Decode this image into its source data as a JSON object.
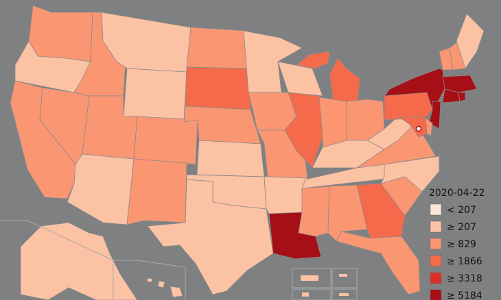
{
  "legend": {
    "title": "2020-04-22",
    "items": [
      {
        "label": "< 207",
        "color": "#fee5d9"
      },
      {
        "label": "≥ 207",
        "color": "#fcc2a4"
      },
      {
        "label": "≥ 829",
        "color": "#fb9673"
      },
      {
        "label": "≥ 1866",
        "color": "#f46a4a"
      },
      {
        "label": "≥ 3318",
        "color": "#de2d26"
      },
      {
        "label": "≥ 5184",
        "color": "#a50f15"
      }
    ]
  }
}
